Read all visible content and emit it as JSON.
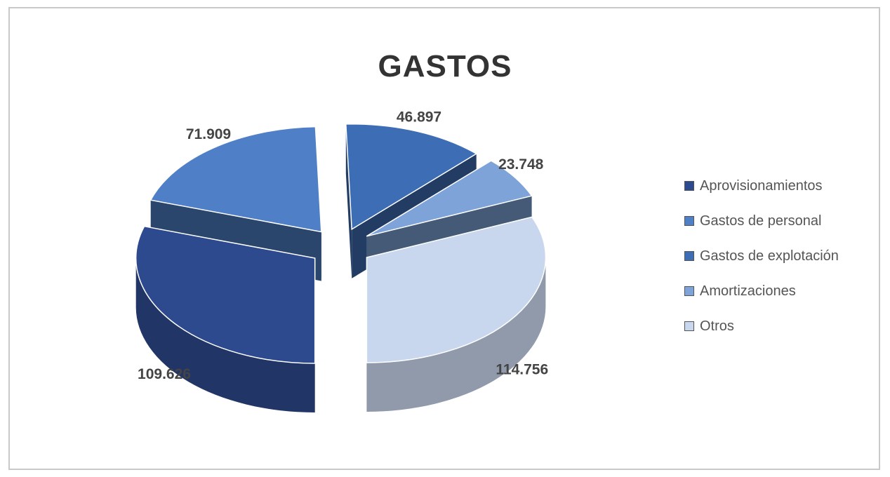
{
  "chart_data": {
    "type": "pie",
    "title": "GASTOS",
    "categories": [
      "Aprovisionamientos",
      "Gastos de personal",
      "Gastos de explotación",
      "Amortizaciones",
      "Otros"
    ],
    "values": [
      109626,
      71909,
      46897,
      23748,
      114756
    ],
    "data_labels": [
      "109.626",
      "71.909",
      "46.897",
      "23.748",
      "114.756"
    ],
    "colors": [
      "#2e4a8e",
      "#4f7fc6",
      "#3d6db5",
      "#7ea3d9",
      "#c8d6ee"
    ],
    "exploded": true,
    "three_d": true,
    "legend_position": "right"
  }
}
